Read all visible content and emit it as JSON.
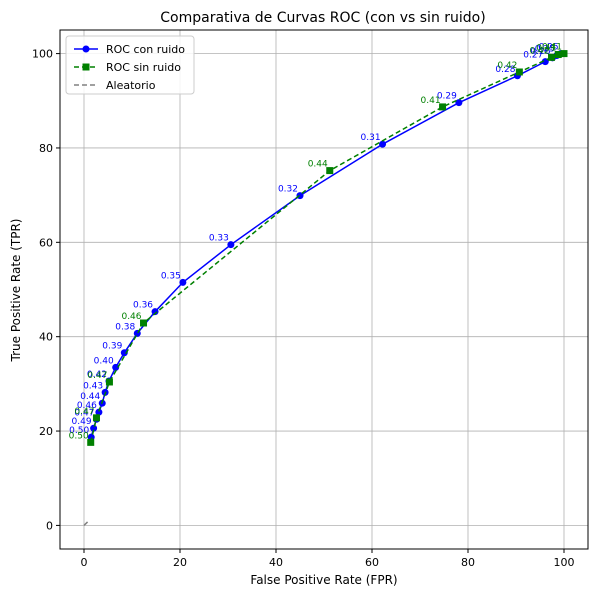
{
  "chart_data": {
    "type": "line",
    "title": "Comparativa de Curvas ROC (con vs sin ruido)",
    "xlabel": "False Positive Rate (FPR)",
    "ylabel": "True Positive Rate (TPR)",
    "xlim": [
      -5,
      105
    ],
    "ylim": [
      -5,
      105
    ],
    "xticks": [
      0,
      20,
      40,
      60,
      80,
      100
    ],
    "yticks": [
      0,
      20,
      40,
      60,
      80,
      100
    ],
    "grid": true,
    "legend": "top-left",
    "series": [
      {
        "name": "ROC con ruido",
        "color": "#0000ff",
        "marker": "circle",
        "line": "solid",
        "x": [
          1.5,
          2.0,
          2.6,
          3.1,
          3.8,
          4.4,
          5.2,
          6.6,
          8.4,
          11.1,
          14.8,
          20.6,
          30.6,
          45.0,
          62.2,
          78.1,
          90.3,
          96.1,
          97.6,
          98.5,
          99.3
        ],
        "y": [
          18.7,
          20.6,
          22.5,
          24.0,
          25.9,
          28.2,
          30.6,
          33.5,
          36.6,
          40.7,
          45.3,
          51.5,
          59.5,
          69.9,
          80.8,
          89.6,
          95.3,
          98.3,
          99.1,
          99.6,
          100.0
        ],
        "labels": [
          "0.50",
          "0.49",
          "0.47",
          "0.46",
          "0.44",
          "0.43",
          "0.42",
          "0.40",
          "0.39",
          "0.38",
          "0.36",
          "0.35",
          "0.33",
          "0.32",
          "0.31",
          "0.29",
          "0.28",
          "0.27",
          "0.26",
          "0.25",
          "0.25"
        ]
      },
      {
        "name": "ROC sin ruido",
        "color": "#008000",
        "marker": "square",
        "line": "dashed",
        "x": [
          1.4,
          2.6,
          5.3,
          12.4,
          51.2,
          74.7,
          90.7,
          97.4,
          98.8,
          100.0
        ],
        "y": [
          17.6,
          22.8,
          30.4,
          42.9,
          75.2,
          88.7,
          96.1,
          99.2,
          99.8,
          100.0
        ],
        "labels": [
          "0.50",
          "0.47",
          "0.47",
          "0.46",
          "0.44",
          "0.41",
          "0.42",
          "0.42",
          "0.41",
          "0.41"
        ]
      },
      {
        "name": "Aleatorio",
        "color": "#808080",
        "marker": "none",
        "line": "dashed",
        "x": [
          0,
          1
        ],
        "y": [
          0,
          1
        ]
      }
    ]
  }
}
